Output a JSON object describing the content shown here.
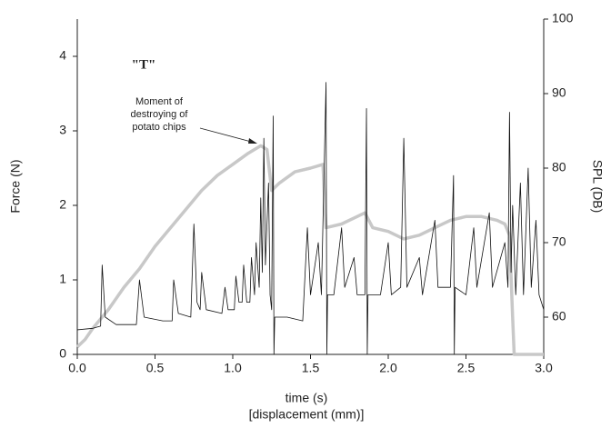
{
  "chart_data": {
    "type": "line",
    "annotations": {
      "label": "\"T\"",
      "note": [
        "Moment of",
        "destroying of",
        "potato chips"
      ]
    },
    "xlabel": [
      "time (s)",
      "[displacement (mm)]"
    ],
    "ylabel": "Force (N)",
    "y2label": "SPL (DB)",
    "xlim": [
      0,
      3
    ],
    "ylim": [
      0,
      4.5
    ],
    "y2lim": [
      55,
      100
    ],
    "xticks": [
      {
        "value": 0,
        "label": "0.0"
      },
      {
        "value": 0.5,
        "label": "0.5"
      },
      {
        "value": 1,
        "label": "1.0"
      },
      {
        "value": 1.5,
        "label": "1.5"
      },
      {
        "value": 2,
        "label": "2.0"
      },
      {
        "value": 2.5,
        "label": "2.5"
      },
      {
        "value": 3,
        "label": "3.0"
      }
    ],
    "yticks": [
      0,
      1,
      2,
      3,
      4
    ],
    "y2ticks": [
      60,
      70,
      80,
      90,
      100
    ],
    "series": [
      {
        "color": "#c8c8c8",
        "axis": "y",
        "x": [
          0,
          0.05,
          0.1,
          0.2,
          0.3,
          0.4,
          0.5,
          0.6,
          0.7,
          0.8,
          0.9,
          1.0,
          1.1,
          1.18,
          1.22,
          1.25,
          1.3,
          1.4,
          1.5,
          1.58,
          1.6,
          1.7,
          1.8,
          1.85,
          1.9,
          2.0,
          2.1,
          2.2,
          2.3,
          2.4,
          2.5,
          2.6,
          2.7,
          2.75,
          2.78,
          2.8,
          2.81,
          3.0
        ],
        "values": [
          0.1,
          0.2,
          0.35,
          0.6,
          0.9,
          1.15,
          1.45,
          1.7,
          1.95,
          2.2,
          2.4,
          2.55,
          2.7,
          2.8,
          2.75,
          2.2,
          2.3,
          2.45,
          2.5,
          2.55,
          1.7,
          1.75,
          1.85,
          1.9,
          1.7,
          1.65,
          1.55,
          1.6,
          1.7,
          1.8,
          1.85,
          1.85,
          1.8,
          1.75,
          1.6,
          0.5,
          0,
          0
        ]
      },
      {
        "color": "#111111",
        "axis": "y2",
        "x": [
          0,
          0.1,
          0.15,
          0.16,
          0.18,
          0.25,
          0.38,
          0.4,
          0.43,
          0.55,
          0.61,
          0.62,
          0.65,
          0.73,
          0.75,
          0.77,
          0.79,
          0.8,
          0.83,
          0.93,
          0.95,
          0.97,
          1.01,
          1.02,
          1.04,
          1.06,
          1.07,
          1.09,
          1.11,
          1.12,
          1.14,
          1.15,
          1.17,
          1.18,
          1.19,
          1.2,
          1.21,
          1.23,
          1.24,
          1.25,
          1.26,
          1.265,
          1.27,
          1.35,
          1.45,
          1.48,
          1.5,
          1.55,
          1.57,
          1.6,
          1.605,
          1.61,
          1.65,
          1.7,
          1.72,
          1.78,
          1.8,
          1.85,
          1.86,
          1.865,
          1.87,
          1.95,
          2.0,
          2.02,
          2.08,
          2.1,
          2.12,
          2.2,
          2.22,
          2.3,
          2.32,
          2.4,
          2.42,
          2.425,
          2.43,
          2.5,
          2.55,
          2.57,
          2.65,
          2.67,
          2.75,
          2.77,
          2.78,
          2.79,
          2.8,
          2.82,
          2.85,
          2.87,
          2.9,
          2.92,
          2.95,
          2.97,
          3.0
        ],
        "values": [
          58.3,
          58.5,
          58.8,
          67,
          60,
          59,
          59,
          65,
          60,
          59.5,
          59.5,
          65,
          60.5,
          60,
          72.5,
          62,
          61,
          66,
          61,
          60.5,
          64,
          61,
          61,
          65.5,
          62,
          62,
          67,
          62,
          62,
          68,
          63,
          70,
          64,
          76,
          66,
          84,
          67,
          78,
          63,
          61,
          87,
          55,
          60,
          60,
          59.5,
          72,
          63,
          70,
          63,
          91.5,
          55,
          63,
          63,
          72,
          64,
          68,
          63,
          63,
          88,
          55,
          63,
          63,
          70,
          63,
          64,
          84,
          64,
          68,
          63,
          73,
          64,
          64,
          79,
          55,
          64,
          63,
          72,
          64,
          74,
          64,
          70,
          64,
          87.5,
          66,
          75,
          63,
          78,
          63,
          80,
          64,
          73,
          63,
          61
        ]
      }
    ]
  }
}
